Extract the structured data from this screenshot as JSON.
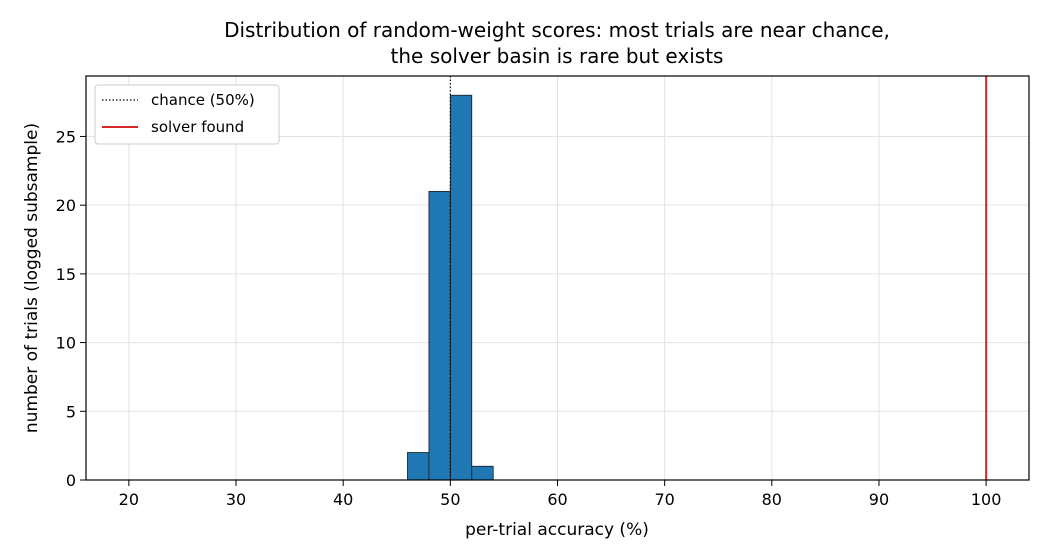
{
  "chart_data": {
    "type": "bar",
    "title_lines": [
      "Distribution of random-weight scores: most trials are near chance,",
      "the solver basin is rare but exists"
    ],
    "xlabel": "per-trial accuracy (%)",
    "ylabel": "number of trials (logged subsample)",
    "xlim": [
      16,
      104
    ],
    "ylim": [
      0,
      29.4
    ],
    "xticks": [
      20,
      30,
      40,
      50,
      60,
      70,
      80,
      90,
      100
    ],
    "yticks": [
      0,
      5,
      10,
      15,
      20,
      25
    ],
    "grid": true,
    "bar_color": "#1f77b4",
    "bins": [
      {
        "x0": 46,
        "x1": 48,
        "count": 2
      },
      {
        "x0": 48,
        "x1": 50,
        "count": 21
      },
      {
        "x0": 50,
        "x1": 52,
        "count": 28
      },
      {
        "x0": 52,
        "x1": 54,
        "count": 1
      }
    ],
    "reference_lines": [
      {
        "name": "chance (50%)",
        "x": 50,
        "color": "#000000",
        "style": "dotted"
      },
      {
        "name": "solver found",
        "x": 100,
        "color": "#d62728",
        "style": "solid"
      }
    ],
    "legend_position": "top-left"
  }
}
